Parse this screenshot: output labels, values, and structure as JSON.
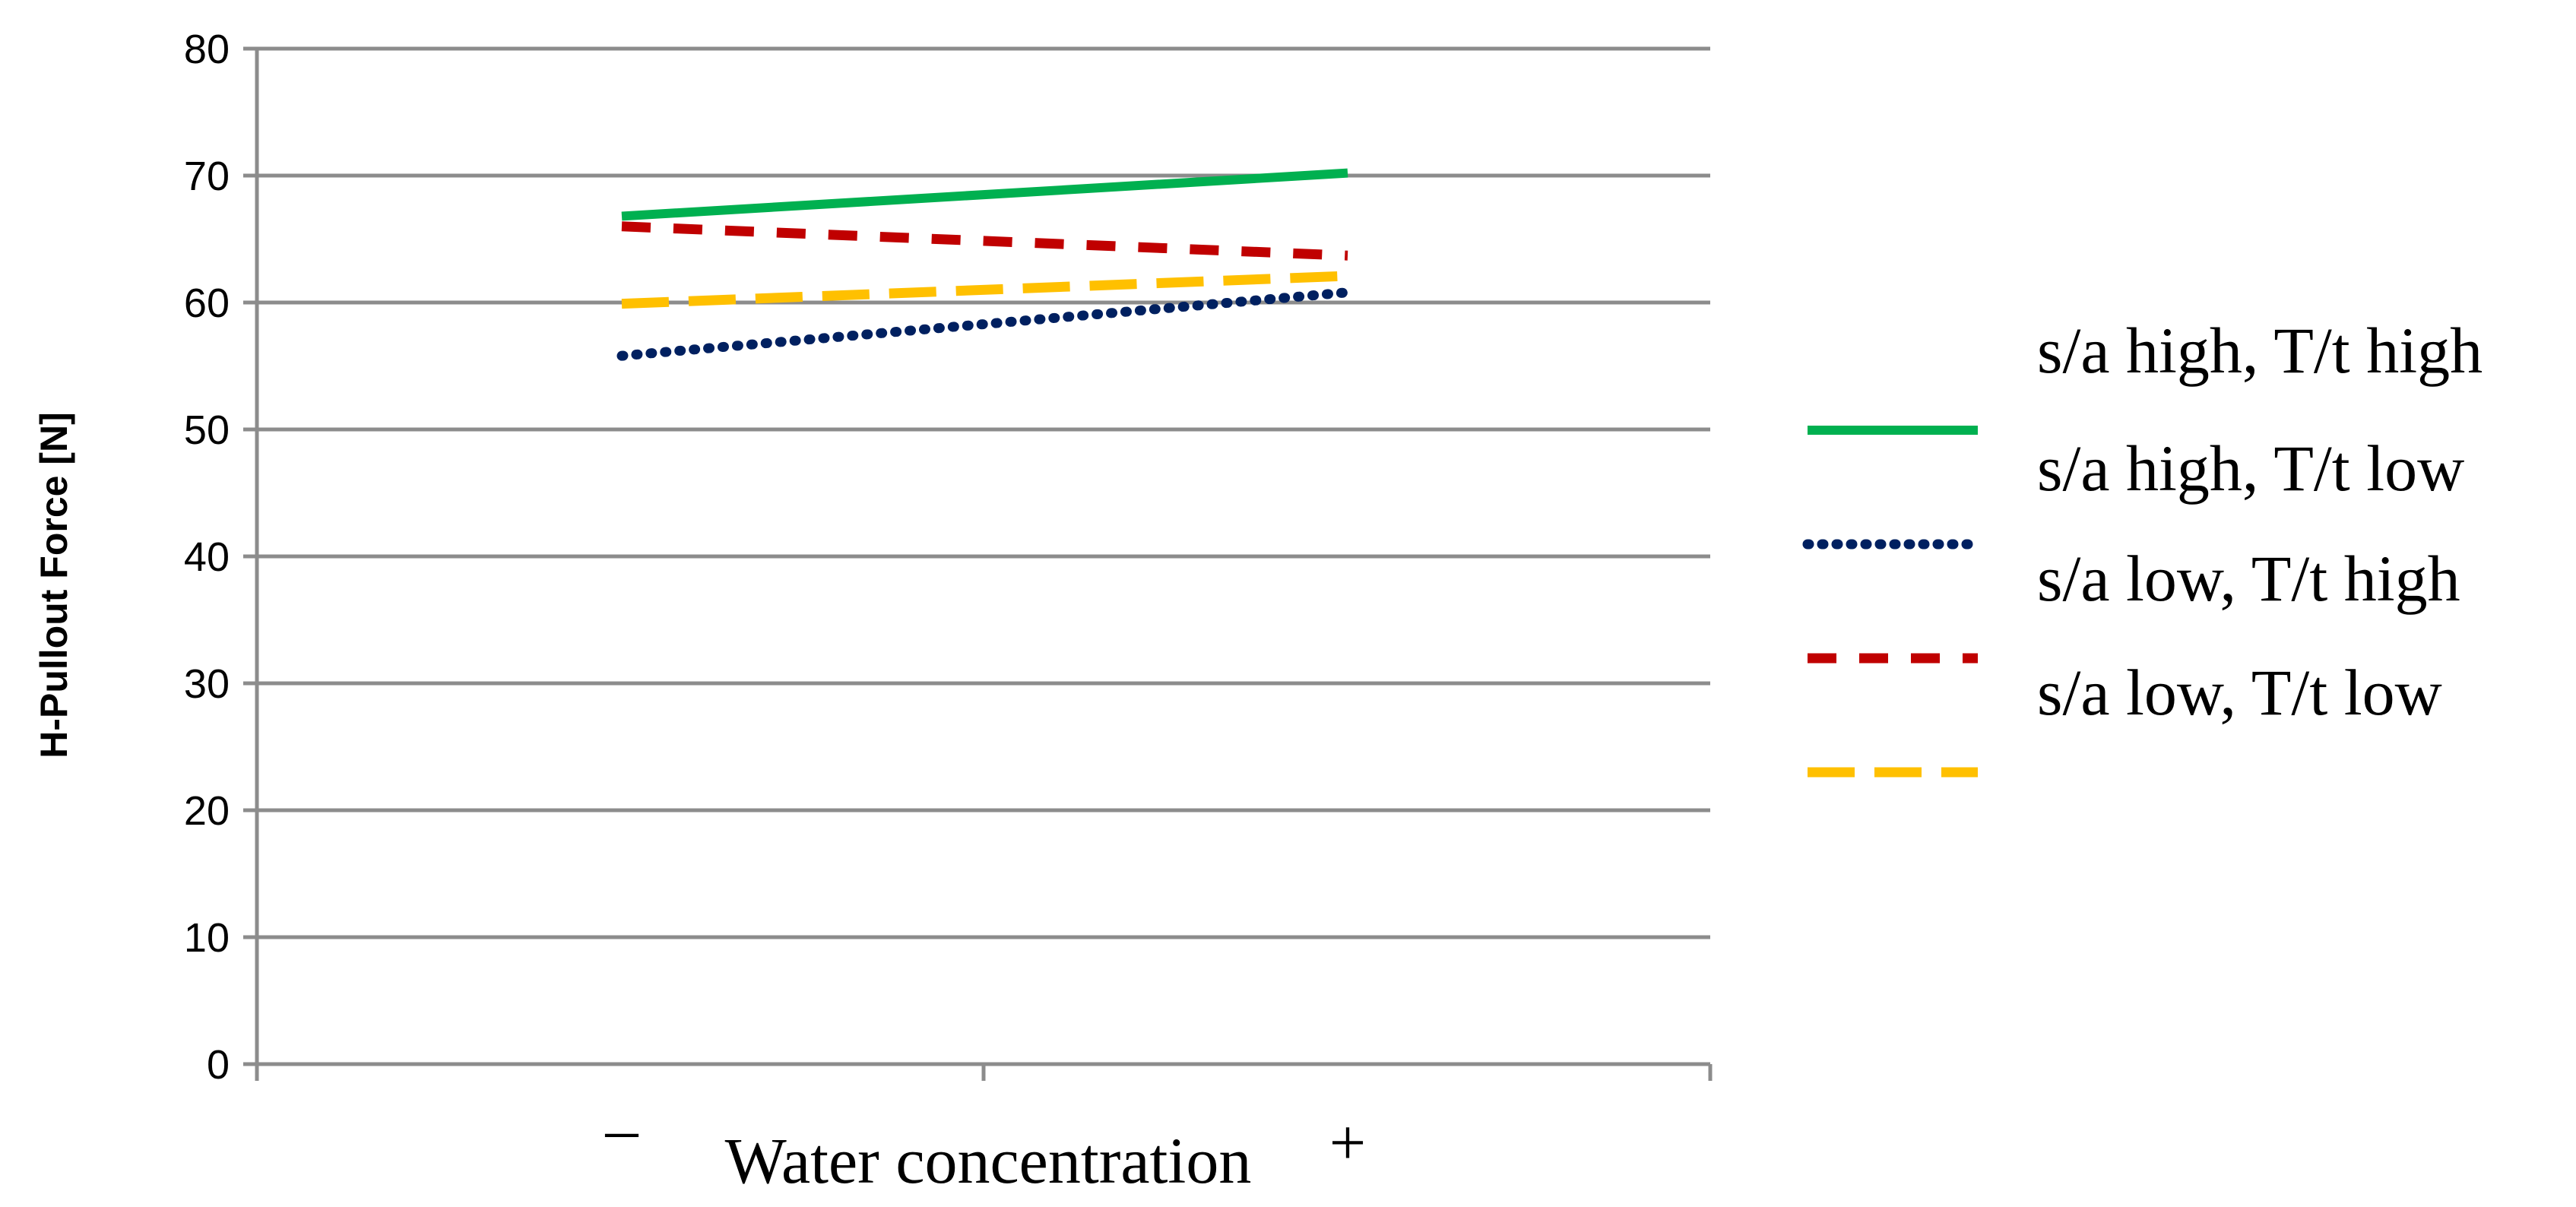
{
  "chart_data": {
    "type": "line",
    "title": "",
    "ylabel": "H-Pullout Force [N]",
    "xlabel": "Water concentration",
    "x_low_marker": "–",
    "x_high_marker": "+",
    "ylim": [
      0,
      80
    ],
    "yticks": [
      0,
      10,
      20,
      30,
      40,
      50,
      60,
      70,
      80
    ],
    "grid": true,
    "legend_position": "right",
    "x": [
      -1,
      1
    ],
    "series": [
      {
        "name": "s/a high, T/t high",
        "values": [
          66.8,
          70.2
        ],
        "color": "#00b050",
        "style": "solid"
      },
      {
        "name": "s/a high, T/t low",
        "values": [
          55.8,
          60.8
        ],
        "color": "#002060",
        "style": "dotted"
      },
      {
        "name": "s/a low, T/t high",
        "values": [
          66.0,
          63.7
        ],
        "color": "#c00000",
        "style": "dashed"
      },
      {
        "name": "s/a low, T/t low",
        "values": [
          59.9,
          62.1
        ],
        "color": "#ffc000",
        "style": "longdash"
      }
    ]
  }
}
